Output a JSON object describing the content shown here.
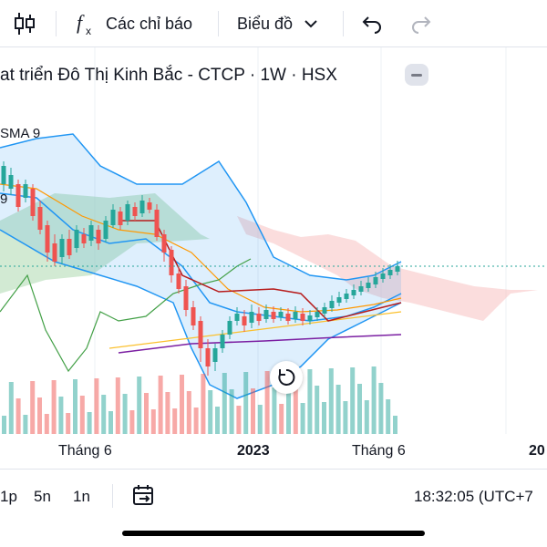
{
  "toolbar": {
    "indicators_label": "Các chỉ báo",
    "chart_type_label": "Biểu đồ"
  },
  "chart": {
    "title": "at triển Đô Thị Kinh Bắc - CTCP · 1W · HSX",
    "indicator_label": "SMA 9",
    "side_value": "9"
  },
  "time_axis": {
    "ticks": [
      "Tháng 6",
      "2023",
      "Tháng 6",
      "20"
    ]
  },
  "bottom_bar": {
    "ranges": [
      "1p",
      "5n",
      "1n"
    ],
    "clock": "18:32:05 (UTC+7"
  },
  "colors": {
    "up": "#26a69a",
    "down": "#ef5350",
    "bollinger": "#2196f3",
    "ichimoku_cloud_up": "#a5d6a7",
    "ichimoku_cloud_down": "#f8bbbb",
    "sma_orange": "#ff9800",
    "sma_purple": "#7b1fa2",
    "sma_yellow": "#fbc02d",
    "lagging_green": "#43a047",
    "price_line": "#26a69a"
  },
  "chart_data": {
    "type": "candlestick",
    "symbol": "Kinh Bắc - CTCP",
    "interval": "1W",
    "exchange": "HSX",
    "x_ticks": [
      "Tháng 6",
      "2023",
      "Tháng 6",
      "20"
    ],
    "indicators": [
      "SMA 9",
      "Bollinger Bands",
      "Ichimoku Cloud"
    ]
  }
}
